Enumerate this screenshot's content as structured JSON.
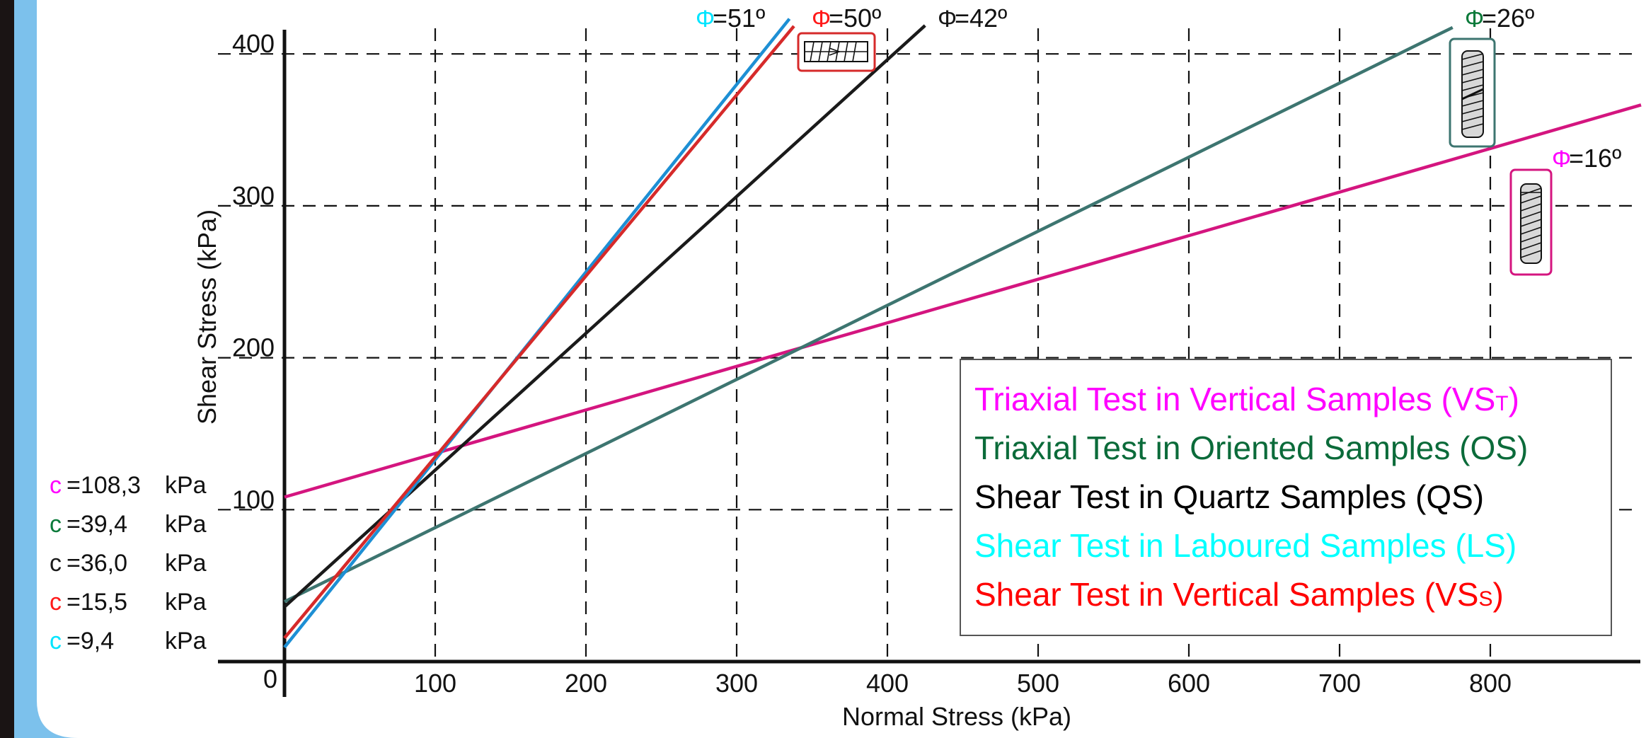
{
  "chart_data": {
    "type": "line",
    "xlabel": "Normal Stress (kPa)",
    "ylabel": "Shear Stress (kPa)",
    "xlim": [
      -45,
      900
    ],
    "ylim": [
      -15,
      420
    ],
    "x_ticks": [
      0,
      100,
      200,
      300,
      400,
      500,
      600,
      700,
      800
    ],
    "y_ticks": [
      100,
      200,
      300,
      400
    ],
    "x_tick_labels": [
      "0",
      "100",
      "200",
      "300",
      "400",
      "500",
      "600",
      "700",
      "800"
    ],
    "y_tick_labels": [
      "100",
      "200",
      "300",
      "400"
    ],
    "grid": "dashed",
    "legend_position": "bottom-right",
    "series": [
      {
        "key": "vst",
        "name": "Triaxial Test in Vertical Samples (VST)",
        "legend_main": "Triaxial Test in Vertical Samples (VS",
        "legend_sub": "T",
        "legend_close": ")",
        "color": "#d4157f",
        "legend_color": "#ff00ff",
        "phi_color": "#ff00ff",
        "phi": "=16º",
        "c_text": "=108,3 kPa",
        "x": [
          0,
          900
        ],
        "y": [
          108.3,
          366.4
        ]
      },
      {
        "key": "os",
        "name": "Triaxial Test in Oriented Samples (OS)",
        "legend_main": "Triaxial Test in Oriented Samples (OS)",
        "legend_sub": "",
        "legend_close": "",
        "color": "#3d7570",
        "legend_color": "#0b6b3a",
        "phi_color": "#0b7a3a",
        "phi": "=26º",
        "c_text": "=39,4   kPa",
        "x": [
          0,
          775
        ],
        "y": [
          39.4,
          417.4
        ]
      },
      {
        "key": "qs",
        "name": "Shear Test in Quartz Samples (QS)",
        "legend_main": "Shear Test in Quartz Samples (QS)",
        "legend_sub": "",
        "legend_close": "",
        "color": "#1a1a1a",
        "legend_color": "#000000",
        "phi_color": "#1a1a1a",
        "phi": "=42º",
        "c_text": "=36,0   kPa",
        "x": [
          0,
          425
        ],
        "y": [
          36.0,
          418.7
        ]
      },
      {
        "key": "ls",
        "name": "Shear Test in Laboured Samples (LS)",
        "legend_main": "Shear Test in Laboured Samples (LS)",
        "legend_sub": "",
        "legend_close": "",
        "color": "#1d8fd4",
        "legend_color": "#00ffff",
        "phi_color": "#00e5ff",
        "phi": "=51º",
        "c_text": "=9,4     kPa",
        "x": [
          0,
          335
        ],
        "y": [
          9.4,
          423.1
        ]
      },
      {
        "key": "vss",
        "name": "Shear Test in Vertical Samples (VSs)",
        "legend_main": "Shear Test in Vertical Samples (VS",
        "legend_sub": "S",
        "legend_close": ")",
        "color": "#d62a2a",
        "legend_color": "#ff0000",
        "phi_color": "#ff1a1a",
        "phi": "=50º",
        "c_text": "=15,5   kPa",
        "x": [
          0,
          338
        ],
        "y": [
          15.5,
          418.3
        ]
      }
    ],
    "c_labels_order": [
      "vst",
      "os",
      "qs",
      "vss",
      "ls"
    ],
    "phi_symbol": "Φ",
    "c_symbol": "c"
  }
}
